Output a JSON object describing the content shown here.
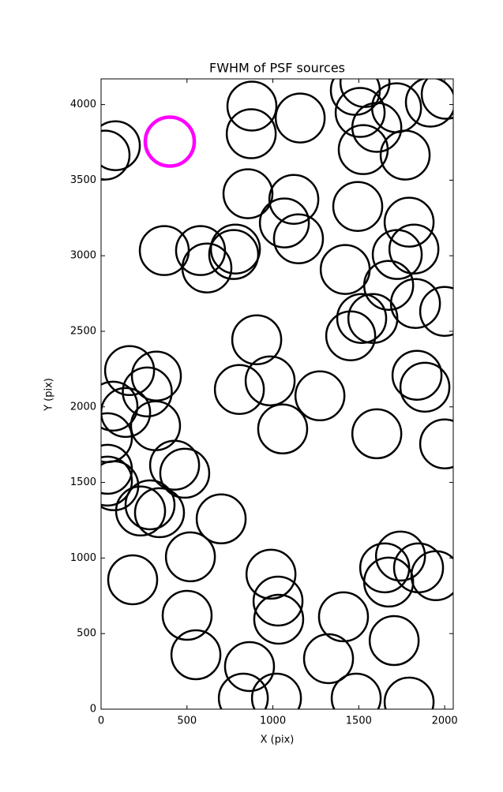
{
  "chart_data": {
    "type": "scatter",
    "title": "FWHM of PSF sources",
    "x_label": "X (pix)",
    "y_label": "Y (pix)",
    "xlim": [
      0,
      2050
    ],
    "ylim": [
      0,
      4170
    ],
    "xticks": [
      0,
      500,
      1000,
      1500,
      2000
    ],
    "yticks": [
      0,
      500,
      1000,
      1500,
      2000,
      2500,
      3000,
      3500,
      4000
    ],
    "series": [
      {
        "color": "#000000",
        "x": [
          23,
          83,
          878,
          874,
          1159,
          1480,
          1536,
          1508,
          1605,
          1720,
          1917,
          2009,
          1526,
          1770,
          855,
          1122,
          1067,
          1149,
          1494,
          1793,
          368,
          579,
          616,
          782,
          772,
          1421,
          1724,
          1821,
          1674,
          1830,
          2000,
          1517,
          1582,
          1453,
          906,
          166,
          322,
          269,
          317,
          69,
          143,
          37,
          805,
          984,
          1274,
          1839,
          1885,
          1057,
          1605,
          2000,
          37,
          74,
          37,
          428,
          487,
          285,
          230,
          340,
          699,
          520,
          184,
          989,
          1030,
          1034,
          501,
          552,
          864,
          1324,
          1411,
          1706,
          1743,
          1651,
          1674,
          1848,
          1949,
          828,
          1021,
          1485,
          1793
        ],
        "values": [
          3666,
          3728,
          3990,
          3807,
          3911,
          4094,
          4146,
          3948,
          3849,
          3979,
          4016,
          4068,
          3702,
          3666,
          3410,
          3373,
          3217,
          3112,
          3326,
          3222,
          3034,
          3034,
          2919,
          3044,
          3008,
          2909,
          3008,
          3044,
          2804,
          2684,
          2632,
          2585,
          2585,
          2470,
          2444,
          2240,
          2204,
          2099,
          1875,
          2005,
          1963,
          1796,
          2115,
          2172,
          2073,
          2209,
          2130,
          1854,
          1822,
          1755,
          1587,
          1478,
          1509,
          1614,
          1561,
          1352,
          1311,
          1300,
          1259,
          1008,
          856,
          893,
          715,
          595,
          621,
          360,
          282,
          334,
          611,
          454,
          1013,
          935,
          841,
          935,
          883,
          73,
          73,
          73,
          47
        ]
      },
      {
        "color": "#ff00ff",
        "x": [
          400
        ],
        "values": [
          3755
        ]
      }
    ]
  }
}
